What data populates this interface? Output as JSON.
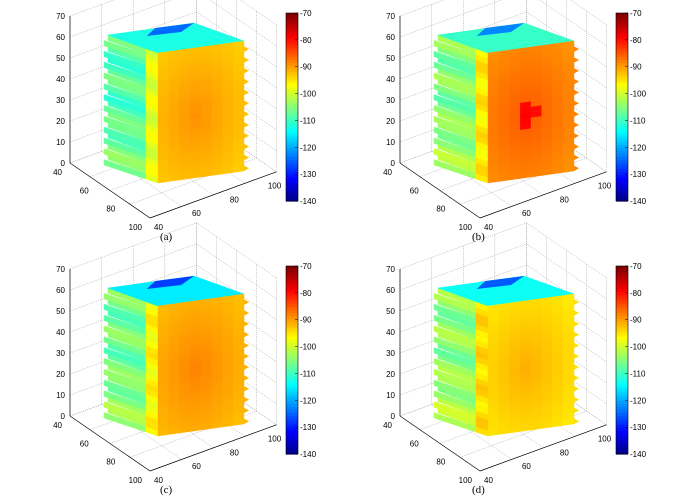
{
  "chart_data": [
    {
      "type": "3d-volume-slice",
      "caption": "(a)",
      "x_ticks": [
        "40",
        "60",
        "80",
        "100"
      ],
      "y_ticks": [
        "40",
        "60",
        "80",
        "100"
      ],
      "z_ticks": [
        "0",
        "10",
        "20",
        "30",
        "40",
        "50",
        "60",
        "70"
      ],
      "colorbar": {
        "min": -140,
        "max": -70,
        "ticks": [
          "-70",
          "-80",
          "-90",
          "-100",
          "-110",
          "-120",
          "-130",
          "-140"
        ]
      },
      "hotspot": "none",
      "front_face_value": -92,
      "side_face_value": -108,
      "top_face_value": -112
    },
    {
      "type": "3d-volume-slice",
      "caption": "(b)",
      "x_ticks": [
        "40",
        "60",
        "80",
        "100"
      ],
      "y_ticks": [
        "40",
        "60",
        "80",
        "100"
      ],
      "z_ticks": [
        "0",
        "10",
        "20",
        "30",
        "40",
        "50",
        "60",
        "70"
      ],
      "colorbar": {
        "min": -140,
        "max": -70,
        "ticks": [
          "-70",
          "-80",
          "-90",
          "-100",
          "-110",
          "-120",
          "-130",
          "-140"
        ]
      },
      "hotspot": "center",
      "front_face_value": -88,
      "side_face_value": -105,
      "top_face_value": -110
    },
    {
      "type": "3d-volume-slice",
      "caption": "(c)",
      "x_ticks": [
        "40",
        "60",
        "80",
        "100"
      ],
      "y_ticks": [
        "40",
        "60",
        "80",
        "100"
      ],
      "z_ticks": [
        "0",
        "10",
        "20",
        "30",
        "40",
        "50",
        "60",
        "70"
      ],
      "colorbar": {
        "min": -140,
        "max": -70,
        "ticks": [
          "-70",
          "-80",
          "-90",
          "-100",
          "-110",
          "-120",
          "-130",
          "-140"
        ]
      },
      "hotspot": "none",
      "front_face_value": -91,
      "side_face_value": -106,
      "top_face_value": -115
    },
    {
      "type": "3d-volume-slice",
      "caption": "(d)",
      "x_ticks": [
        "40",
        "60",
        "80",
        "100"
      ],
      "y_ticks": [
        "40",
        "60",
        "80",
        "100"
      ],
      "z_ticks": [
        "0",
        "10",
        "20",
        "30",
        "40",
        "50",
        "60",
        "70"
      ],
      "colorbar": {
        "min": -140,
        "max": -70,
        "ticks": [
          "-70",
          "-80",
          "-90",
          "-100",
          "-110",
          "-120",
          "-130",
          "-140"
        ]
      },
      "hotspot": "none",
      "front_face_value": -94,
      "side_face_value": -104,
      "top_face_value": -113
    }
  ]
}
